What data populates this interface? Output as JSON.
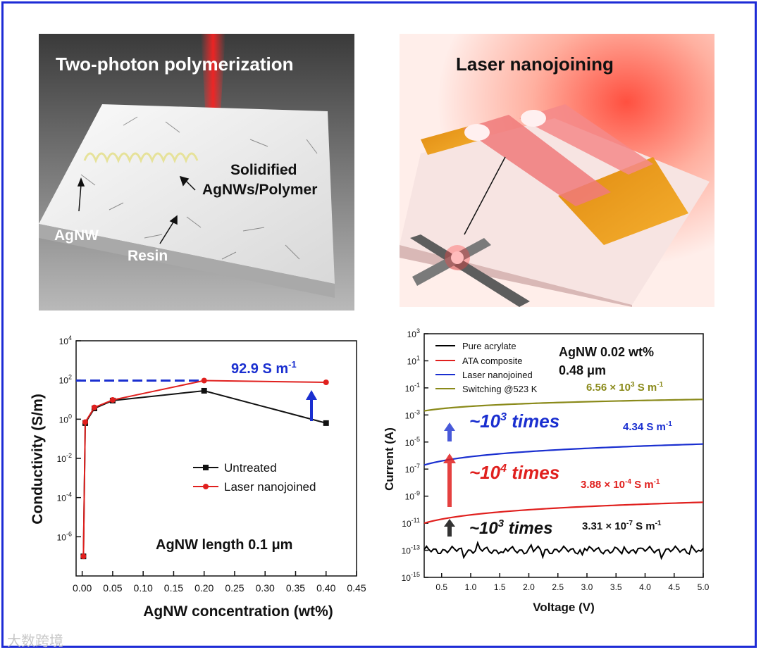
{
  "panel_a": {
    "title": "Two-photon polymerization",
    "labels": {
      "solidified_1": "Solidified",
      "solidified_2": "AgNWs/Polymer",
      "agnw": "AgNW",
      "resin": "Resin"
    }
  },
  "panel_b": {
    "title": "Laser nanojoining"
  },
  "chart_data": [
    {
      "type": "line",
      "title": "",
      "xlabel": "AgNW concentration (wt%)",
      "ylabel": "Conductivity (S/m)",
      "yscale": "log",
      "xlim": [
        -0.01,
        0.45
      ],
      "ylim_exp": [
        -8,
        4
      ],
      "x_ticks": [
        "0.00",
        "0.05",
        "0.10",
        "0.15",
        "0.20",
        "0.25",
        "0.30",
        "0.35",
        "0.40",
        "0.45"
      ],
      "y_tick_exps": [
        4,
        2,
        0,
        -2,
        -4,
        -6
      ],
      "series": [
        {
          "name": "Untreated",
          "color": "#111111",
          "marker": "square",
          "x": [
            0.002,
            0.005,
            0.02,
            0.05,
            0.2,
            0.4
          ],
          "log_y": [
            -7.0,
            -0.2,
            0.55,
            0.95,
            1.45,
            -0.2
          ]
        },
        {
          "name": "Laser nanojoined",
          "color": "#e0201e",
          "marker": "circle",
          "x": [
            0.002,
            0.005,
            0.02,
            0.05,
            0.2,
            0.4
          ],
          "log_y": [
            -7.0,
            -0.15,
            0.6,
            0.98,
            1.97,
            1.88
          ]
        }
      ],
      "annotations": {
        "value": "92.9 S m",
        "value_exp": "-1",
        "length": "AgNW length 0.1 μm"
      }
    },
    {
      "type": "line",
      "title": "",
      "xlabel": "Voltage (V)",
      "ylabel": "Current (A)",
      "yscale": "log",
      "xlim": [
        0.2,
        5.0
      ],
      "ylim_exp": [
        -15,
        3
      ],
      "x_ticks": [
        "0.5",
        "1.0",
        "1.5",
        "2.0",
        "2.5",
        "3.0",
        "3.5",
        "4.0",
        "4.5",
        "5.0"
      ],
      "y_tick_exps": [
        3,
        1,
        -1,
        -3,
        -5,
        -7,
        -9,
        -11,
        -13,
        -15
      ],
      "series": [
        {
          "name": "Pure acrylate",
          "color": "#000000",
          "log_y_base": -13.0
        },
        {
          "name": "ATA composite",
          "color": "#e0201e",
          "log_y_start": -11.0,
          "log_y_end": -9.45
        },
        {
          "name": "Laser nanojoined",
          "color": "#1a2fd0",
          "log_y_start": -6.7,
          "log_y_end": -5.15
        },
        {
          "name": "Switching @523 K",
          "color": "#8a8a1a",
          "log_y_start": -2.7,
          "log_y_end": -1.85
        }
      ],
      "annotations": {
        "sample_1": "AgNW 0.02 wt%",
        "sample_2": "0.48 μm",
        "c4_a": "6.56 × 10",
        "c4_exp": "3",
        "c4_b": "S m",
        "c4_unit_exp": "-1",
        "c3_a": "4.34 S m",
        "c3_unit_exp": "-1",
        "c2_a": "3.88 × 10",
        "c2_exp": "-4",
        "c2_b": "S m",
        "c2_unit_exp": "-1",
        "c1_a": "3.31 × 10",
        "c1_exp": "-7",
        "c1_b": "S m",
        "c1_unit_exp": "-1",
        "t_top": "~10",
        "t_top_exp": "3",
        "t_mid": "~10",
        "t_mid_exp": "4",
        "t_bot": "~10",
        "t_bot_exp": "3",
        "times": "times"
      }
    }
  ],
  "watermark": "大数跨境",
  "colors": {
    "border": "#1d2bd6",
    "blue": "#1a2fd0",
    "red": "#e0201e",
    "olive": "#8a8a1a"
  }
}
